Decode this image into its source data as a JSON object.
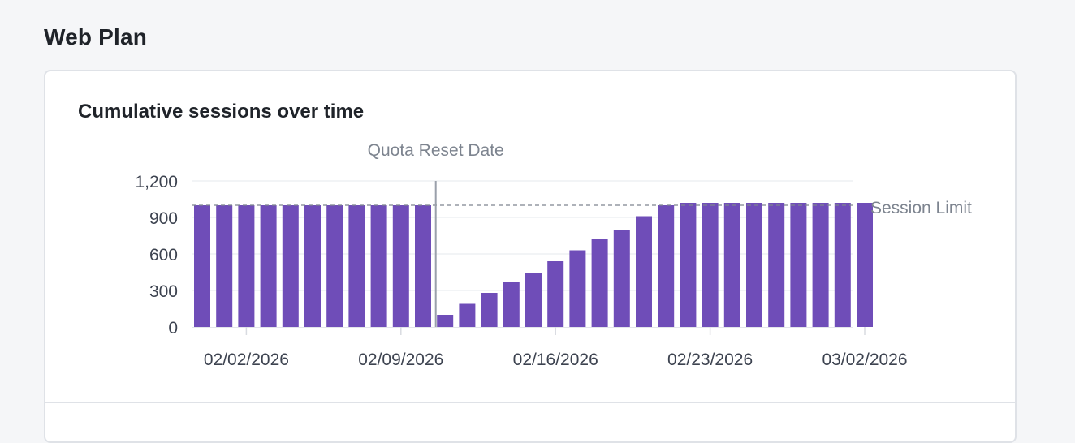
{
  "page": {
    "title": "Web Plan"
  },
  "chart_data": {
    "type": "bar",
    "title": "Cumulative sessions over time",
    "xlabel": "",
    "ylabel": "",
    "ylim": [
      0,
      1200
    ],
    "yticks": [
      0,
      300,
      600,
      900,
      1200
    ],
    "ytick_labels": [
      "0",
      "300",
      "600",
      "900",
      "1,200"
    ],
    "xtick_labels": [
      "02/02/2026",
      "02/09/2026",
      "02/16/2026",
      "02/23/2026",
      "03/02/2026"
    ],
    "xtick_dates": [
      "2026-02-02",
      "2026-02-09",
      "2026-02-16",
      "2026-02-23",
      "2026-03-02"
    ],
    "dates": [
      "2026-01-31",
      "2026-02-01",
      "2026-02-02",
      "2026-02-03",
      "2026-02-04",
      "2026-02-05",
      "2026-02-06",
      "2026-02-07",
      "2026-02-08",
      "2026-02-09",
      "2026-02-10",
      "2026-02-11",
      "2026-02-12",
      "2026-02-13",
      "2026-02-14",
      "2026-02-15",
      "2026-02-16",
      "2026-02-17",
      "2026-02-18",
      "2026-02-19",
      "2026-02-20",
      "2026-02-21",
      "2026-02-22",
      "2026-02-23",
      "2026-02-24",
      "2026-02-25",
      "2026-02-26",
      "2026-02-27",
      "2026-02-28",
      "2026-03-01",
      "2026-03-02"
    ],
    "values": [
      1000,
      1000,
      1000,
      1000,
      1000,
      1000,
      1000,
      1000,
      1000,
      1000,
      1000,
      100,
      190,
      280,
      370,
      440,
      540,
      630,
      720,
      800,
      910,
      1000,
      1020,
      1020,
      1020,
      1020,
      1020,
      1020,
      1020,
      1020,
      1020
    ],
    "grid": true,
    "bar_color": "#6f4db8",
    "reference_line": {
      "label": "Session Limit",
      "value": 1000,
      "style": "dashed"
    },
    "marker": {
      "label": "Quota Reset Date",
      "date": "2026-02-11"
    }
  }
}
